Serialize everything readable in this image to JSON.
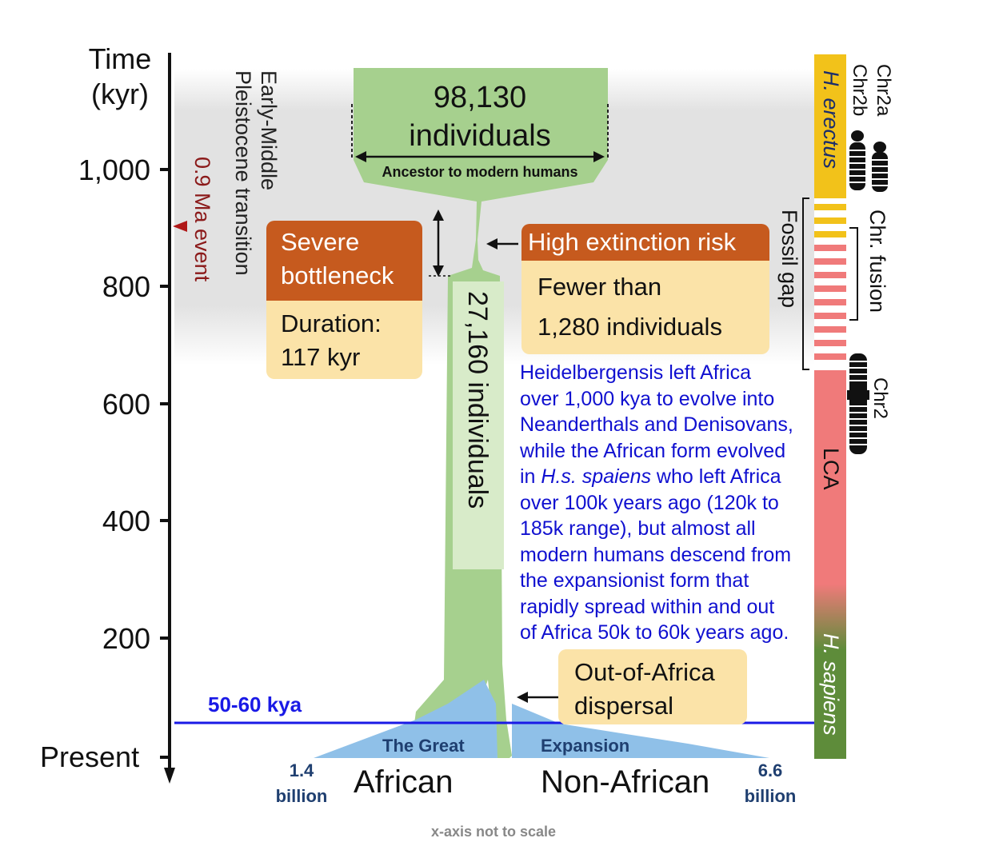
{
  "axis": {
    "title_line1": "Time",
    "title_line2": "(kyr)",
    "ticks": [
      {
        "label": "1,000",
        "value": 1000
      },
      {
        "label": "800",
        "value": 800
      },
      {
        "label": "600",
        "value": 600
      },
      {
        "label": "400",
        "value": 400
      },
      {
        "label": "200",
        "value": 200
      }
    ],
    "present_label": "Present"
  },
  "transition": {
    "line1": "Early-Middle",
    "line2": "Pleistocene transition"
  },
  "event": {
    "label": "0.9 Ma event",
    "color": "#8b1a1a"
  },
  "ancestor": {
    "count": "98,130",
    "unit": "individuals",
    "caption": "Ancestor to modern humans"
  },
  "bottleneck": {
    "title_line1": "Severe",
    "title_line2": "bottleneck",
    "duration_line1": "Duration:",
    "duration_line2": "117 kyr"
  },
  "extinction": {
    "title": "High extinction risk",
    "body_line1": "Fewer than",
    "body_line2": "1,280 individuals"
  },
  "trunk_label": "27,160 individuals",
  "note": {
    "lines": [
      "Heidelbergensis left Africa",
      "over 1,000 kya to evolve into",
      "Neanderthals and Denisovans,",
      "while the African form evolved",
      "in |H.s. spaiens| who left Africa",
      "over 100k years ago (120k to",
      "185k range), but almost all",
      "modern humans descend from",
      "the expansionist form that",
      "rapidly spread within and out",
      "of Africa 50k to 60k years ago."
    ],
    "color": "#1010d0"
  },
  "out_of_africa": {
    "line1": "Out-of-Africa",
    "line2": "dispersal"
  },
  "kya_line": {
    "label": "50-60 kya",
    "color": "#1a1ae6"
  },
  "expansion": {
    "left_label": "The Great",
    "right_label": "Expansion",
    "african": "African",
    "non_african": "Non-African",
    "left_pop_value": "1.4",
    "left_pop_unit": "billion",
    "right_pop_value": "6.6",
    "right_pop_unit": "billion"
  },
  "footnote": "x-axis not to scale",
  "right_bar": {
    "erectus_label": "H. erectus",
    "lca_label": "LCA",
    "sapiens_label": "H. sapiens",
    "fossil_gap": "Fossil gap",
    "chr_fusion": "Chr. fusion",
    "chr2a": "Chr2a",
    "chr2b": "Chr2b",
    "chr2": "Chr2",
    "colors": {
      "erectus": "#f2c21a",
      "lca": "#f07a7a",
      "sapiens": "#5e8c3a",
      "green": "#a6d08e",
      "blue": "#8fc0e8",
      "orange": "#c65a1e",
      "cream": "#fbe3a8"
    }
  }
}
